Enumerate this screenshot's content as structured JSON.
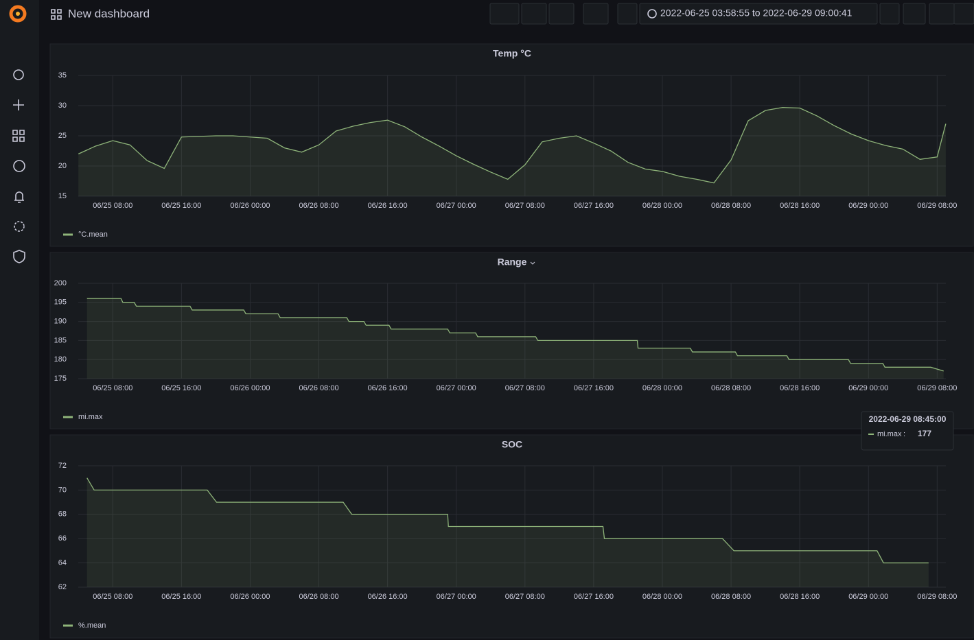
{
  "header": {
    "title": "New dashboard",
    "time_range": "2022-06-25 03:58:55 to 2022-06-29 09:00:41"
  },
  "chart_data": [
    {
      "type": "line",
      "title": "Temp °C",
      "x": [
        "06/25 04:00",
        "06/25 06:00",
        "06/25 08:00",
        "06/25 10:00",
        "06/25 12:00",
        "06/25 14:00",
        "06/25 16:00",
        "06/25 18:00",
        "06/25 20:00",
        "06/25 22:00",
        "06/26 00:00",
        "06/26 02:00",
        "06/26 04:00",
        "06/26 06:00",
        "06/26 08:00",
        "06/26 10:00",
        "06/26 12:00",
        "06/26 14:00",
        "06/26 16:00",
        "06/26 18:00",
        "06/26 20:00",
        "06/26 22:00",
        "06/27 00:00",
        "06/27 02:00",
        "06/27 04:00",
        "06/27 06:00",
        "06/27 08:00",
        "06/27 10:00",
        "06/27 12:00",
        "06/27 14:00",
        "06/27 16:00",
        "06/27 18:00",
        "06/27 20:00",
        "06/27 22:00",
        "06/28 00:00",
        "06/28 02:00",
        "06/28 04:00",
        "06/28 06:00",
        "06/28 08:00",
        "06/28 10:00",
        "06/28 12:00",
        "06/28 14:00",
        "06/28 16:00",
        "06/28 18:00",
        "06/28 20:00",
        "06/28 22:00",
        "06/29 00:00",
        "06/29 02:00",
        "06/29 04:00",
        "06/29 06:00",
        "06/29 08:00",
        "06/29 09:00"
      ],
      "series": [
        {
          "name": "°C.mean",
          "color": "#8fb57a",
          "values": [
            22.0,
            23.3,
            24.2,
            23.5,
            20.9,
            19.6,
            24.8,
            24.9,
            25.0,
            25.0,
            24.8,
            24.6,
            23.0,
            22.3,
            23.5,
            25.8,
            26.6,
            27.2,
            27.6,
            26.5,
            24.8,
            23.3,
            21.7,
            20.3,
            19.0,
            17.8,
            20.2,
            24.0,
            24.6,
            25.0,
            23.8,
            22.5,
            20.6,
            19.5,
            19.1,
            18.3,
            17.8,
            17.2,
            21.0,
            27.5,
            29.2,
            29.7,
            29.6,
            28.3,
            26.7,
            25.3,
            24.2,
            23.4,
            22.8,
            21.1,
            21.5,
            27.0
          ]
        }
      ],
      "xlim": [
        "06/25 03:58:55",
        "06/29 09:00:41"
      ],
      "xticks": [
        "06/25 08:00",
        "06/25 16:00",
        "06/26 00:00",
        "06/26 08:00",
        "06/26 16:00",
        "06/27 00:00",
        "06/27 08:00",
        "06/27 16:00",
        "06/28 00:00",
        "06/28 08:00",
        "06/28 16:00",
        "06/29 00:00",
        "06/29 08:00"
      ],
      "ylim": [
        15,
        35
      ],
      "yticks": [
        15,
        20,
        25,
        30,
        35
      ],
      "grid": true
    },
    {
      "type": "line",
      "title": "Range",
      "x": [
        "06/25 05:00",
        "06/25 08:58",
        "06/25 09:10",
        "06/25 10:30",
        "06/25 10:45",
        "06/25 17:00",
        "06/25 17:15",
        "06/25 23:15",
        "06/25 23:30",
        "06/26 03:15",
        "06/26 03:30",
        "06/26 11:15",
        "06/26 11:30",
        "06/26 13:15",
        "06/26 13:30",
        "06/26 16:10",
        "06/26 16:25",
        "06/26 23:00",
        "06/26 23:15",
        "06/27 02:15",
        "06/27 02:30",
        "06/27 09:15",
        "06/27 09:30",
        "06/27 21:05",
        "06/27 21:10",
        "06/28 03:15",
        "06/28 03:30",
        "06/28 08:30",
        "06/28 08:45",
        "06/28 14:30",
        "06/28 14:45",
        "06/28 21:40",
        "06/28 21:55",
        "06/29 01:40",
        "06/29 01:55",
        "06/29 07:15",
        "06/29 08:45"
      ],
      "series": [
        {
          "name": "mi.max",
          "color": "#8fb57a",
          "values": [
            196,
            196,
            195,
            195,
            194,
            194,
            193,
            193,
            192,
            192,
            191,
            191,
            190,
            190,
            189,
            189,
            188,
            188,
            187,
            187,
            186,
            186,
            185,
            185,
            183,
            183,
            182,
            182,
            181,
            181,
            180,
            180,
            179,
            179,
            178,
            178,
            177
          ]
        }
      ],
      "xlim": [
        "06/25 03:58:55",
        "06/29 09:00:41"
      ],
      "xticks": [
        "06/25 08:00",
        "06/25 16:00",
        "06/26 00:00",
        "06/26 08:00",
        "06/26 16:00",
        "06/27 00:00",
        "06/27 08:00",
        "06/27 16:00",
        "06/28 00:00",
        "06/28 08:00",
        "06/28 16:00",
        "06/29 00:00",
        "06/29 08:00"
      ],
      "ylim": [
        175,
        200
      ],
      "yticks": [
        175,
        180,
        185,
        190,
        195,
        200
      ],
      "grid": true
    },
    {
      "type": "line",
      "title": "SOC",
      "x": [
        "06/25 05:00",
        "06/25 05:50",
        "06/25 19:00",
        "06/25 20:05",
        "06/26 10:50",
        "06/26 11:50",
        "06/26 23:00",
        "06/26 23:05",
        "06/27 17:05",
        "06/27 17:15",
        "06/28 07:00",
        "06/28 08:20",
        "06/29 01:00",
        "06/29 01:45",
        "06/29 07:00"
      ],
      "series": [
        {
          "name": "%.mean",
          "color": "#8fb57a",
          "values": [
            71,
            70,
            70,
            69,
            69,
            68,
            68,
            67,
            67,
            66,
            66,
            65,
            65,
            64,
            64
          ]
        }
      ],
      "xlim": [
        "06/25 03:58:55",
        "06/29 09:00:41"
      ],
      "xticks": [
        "06/25 08:00",
        "06/25 16:00",
        "06/26 00:00",
        "06/26 08:00",
        "06/26 16:00",
        "06/27 00:00",
        "06/27 08:00",
        "06/27 16:00",
        "06/28 00:00",
        "06/28 08:00",
        "06/28 16:00",
        "06/29 00:00",
        "06/29 08:00"
      ],
      "ylim": [
        62,
        72
      ],
      "yticks": [
        62,
        64,
        66,
        68,
        70,
        72
      ],
      "grid": true
    }
  ],
  "tooltip": {
    "time": "2022-06-29 08:45:00",
    "series": "mi.max",
    "value": 177
  }
}
